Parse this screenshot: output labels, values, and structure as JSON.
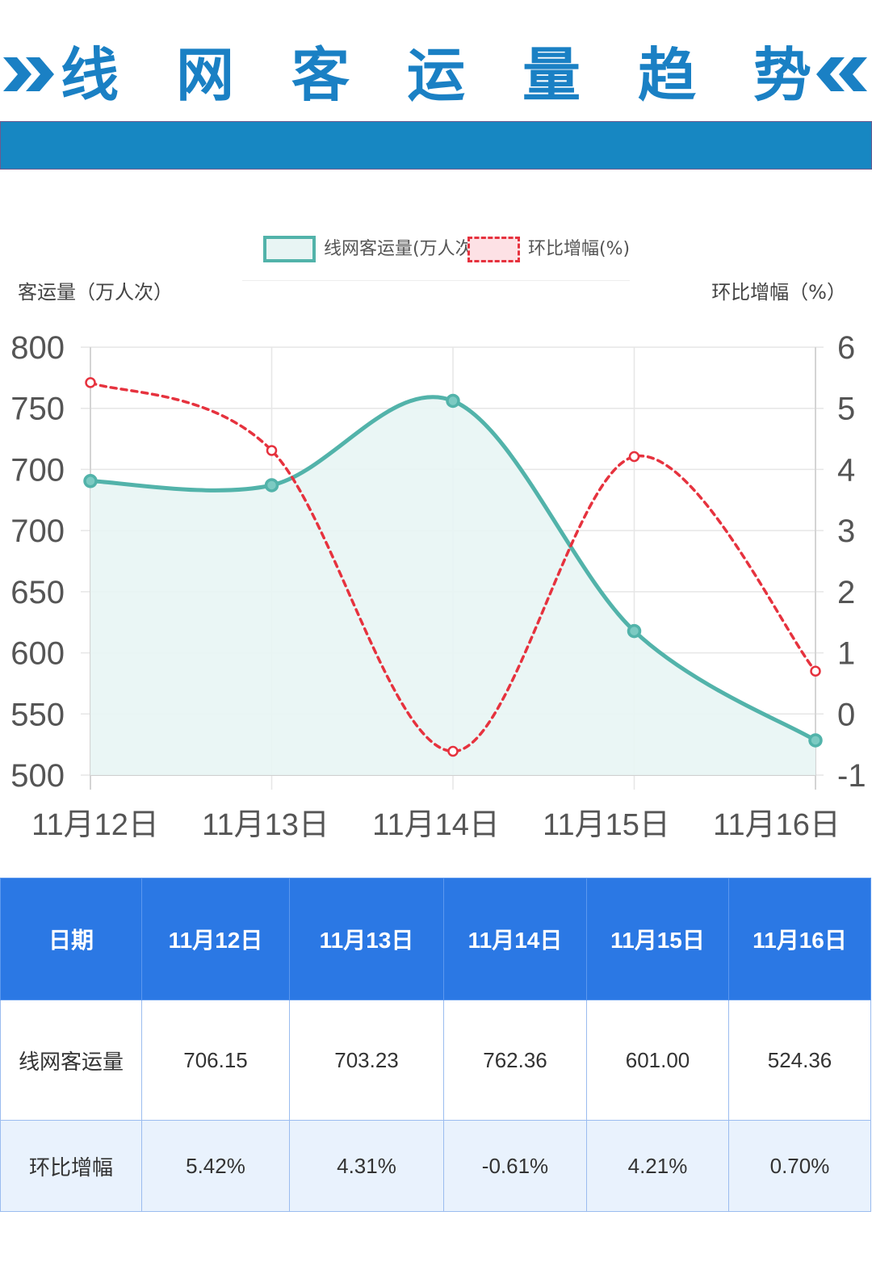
{
  "title": "线网客运量趋势",
  "icons": {
    "title_left": "double-chevron-right-icon",
    "title_right": "double-chevron-left-icon"
  },
  "colors": {
    "title": "#1a80c4",
    "banner": "#1787c2",
    "volume": "#52b3aa",
    "volume_fill": "#e8f5f4",
    "growth": "#e6323e",
    "growth_fill": "#fde1e5",
    "table_header": "#2b78e4",
    "table_alt_row": "#e9f2fd",
    "table_border": "#9bbcef"
  },
  "chart_data": {
    "type": "line",
    "categories": [
      "11月12日",
      "11月13日",
      "11月14日",
      "11月15日",
      "11月16日"
    ],
    "series": [
      {
        "name": "线网客运量(万人次)",
        "y_axis": "left",
        "line_style": "solid",
        "area": true,
        "values": [
          706.15,
          703.23,
          762.36,
          601.0,
          524.36
        ]
      },
      {
        "name": "环比增幅(%)",
        "y_axis": "right",
        "line_style": "dashed",
        "area": false,
        "values": [
          5.42,
          4.31,
          -0.61,
          4.21,
          0.7
        ]
      }
    ],
    "ylabel_left": "客运量（万人次）",
    "ylabel_right": "环比增幅（%）",
    "ylim_left": [
      500,
      800
    ],
    "ylim_right": [
      -1,
      6
    ],
    "yticks_left": [
      "800",
      "750",
      "700",
      "700",
      "650",
      "600",
      "550",
      "500"
    ],
    "yticks_right": [
      "6",
      "5",
      "4",
      "3",
      "2",
      "1",
      "0",
      "-1"
    ],
    "legend_position": "top-center",
    "grid": true
  },
  "table": {
    "header": [
      "日期",
      "11月12日",
      "11月13日",
      "11月14日",
      "11月15日",
      "11月16日"
    ],
    "rows": [
      {
        "label": "线网客运量",
        "cells": [
          "706.15",
          "703.23",
          "762.36",
          "601.00",
          "524.36"
        ]
      },
      {
        "label": "环比增幅",
        "cells": [
          "5.42%",
          "4.31%",
          "-0.61%",
          "4.21%",
          "0.70%"
        ]
      }
    ]
  }
}
